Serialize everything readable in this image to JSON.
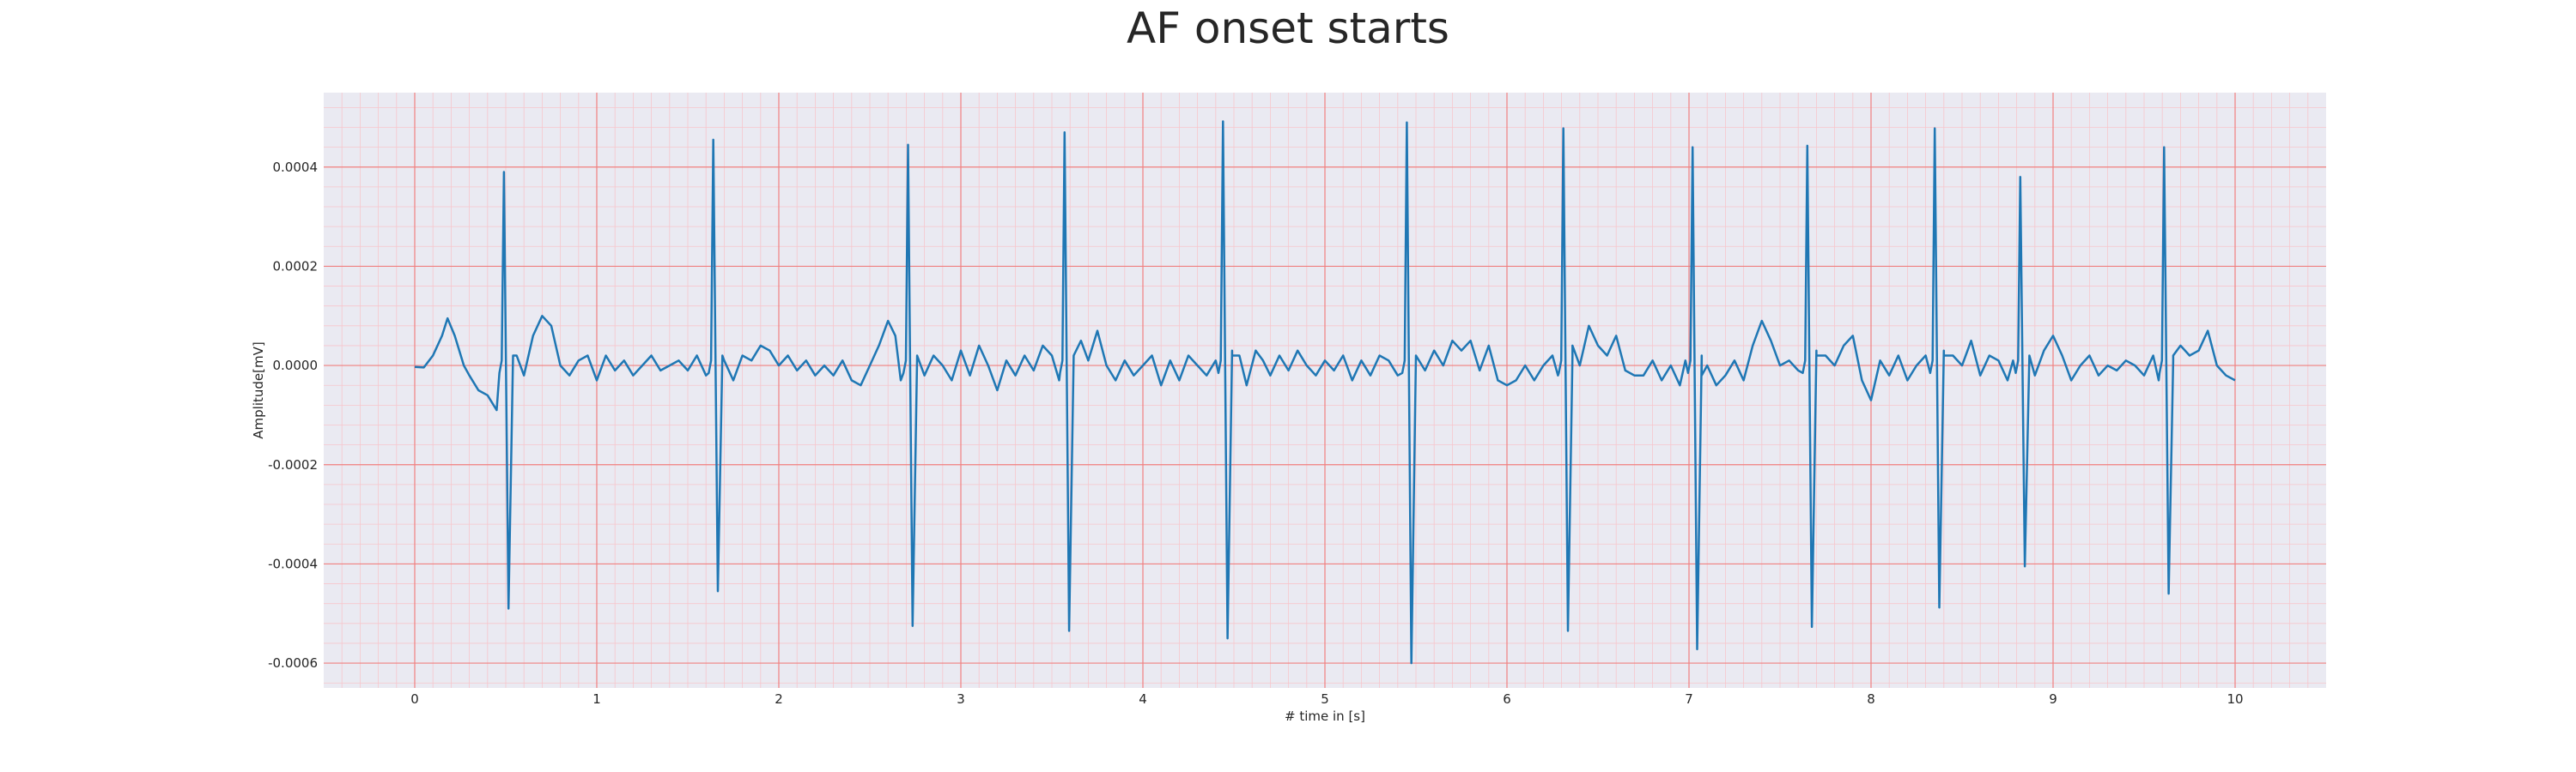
{
  "chart_data": {
    "type": "line",
    "title": "AF onset starts",
    "xlabel": "# time in [s]",
    "ylabel": "Amplitude[mV]",
    "xlim": [
      -0.5,
      10.5
    ],
    "ylim": [
      -0.00065,
      0.00055
    ],
    "x_ticks": [
      0,
      1,
      2,
      3,
      4,
      5,
      6,
      7,
      8,
      9,
      10
    ],
    "x_tick_labels": [
      "0",
      "1",
      "2",
      "3",
      "4",
      "5",
      "6",
      "7",
      "8",
      "9",
      "10"
    ],
    "y_ticks": [
      0.0004,
      0.0002,
      0.0,
      -0.0002,
      -0.0004,
      -0.0006
    ],
    "y_tick_labels": [
      "0.0004",
      "0.0002",
      "0.0000",
      "-0.0002",
      "-0.0004",
      "-0.0006"
    ],
    "grid": {
      "major": true,
      "minor": true,
      "major_color": "#f08080",
      "minor_color": "#f7c6cc"
    },
    "background": "#eaeaf2",
    "series": [
      {
        "color": "#1f77b4",
        "r_peaks": [
          {
            "t": 0.49,
            "max": 0.00039,
            "min": -0.00049
          },
          {
            "t": 1.64,
            "max": 0.000455,
            "min": -0.000455
          },
          {
            "t": 2.71,
            "max": 0.000445,
            "min": -0.000525
          },
          {
            "t": 3.57,
            "max": 0.00047,
            "min": -0.000535
          },
          {
            "t": 4.44,
            "max": 0.000492,
            "min": -0.00055
          },
          {
            "t": 5.45,
            "max": 0.00049,
            "min": -0.0006
          },
          {
            "t": 6.31,
            "max": 0.000478,
            "min": -0.000535
          },
          {
            "t": 7.02,
            "max": 0.00044,
            "min": -0.000572
          },
          {
            "t": 7.65,
            "max": 0.000443,
            "min": -0.000527
          },
          {
            "t": 8.35,
            "max": 0.000478,
            "min": -0.000488
          },
          {
            "t": 8.82,
            "max": 0.00038,
            "min": -0.000405
          },
          {
            "t": 9.61,
            "max": 0.00044,
            "min": -0.00046
          }
        ],
        "baseline_wave": [
          [
            0.0,
            -3e-06
          ],
          [
            0.05,
            -4e-06
          ],
          [
            0.1,
            2e-05
          ],
          [
            0.15,
            6e-05
          ],
          [
            0.18,
            9.5e-05
          ],
          [
            0.22,
            6e-05
          ],
          [
            0.27,
            0.0
          ],
          [
            0.3,
            -2e-05
          ],
          [
            0.35,
            -5e-05
          ],
          [
            0.4,
            -6e-05
          ],
          [
            0.45,
            -9e-05
          ],
          [
            0.56,
            2e-05
          ],
          [
            0.6,
            -2e-05
          ],
          [
            0.65,
            6e-05
          ],
          [
            0.7,
            0.0001
          ],
          [
            0.75,
            8e-05
          ],
          [
            0.8,
            0.0
          ],
          [
            0.85,
            -2e-05
          ],
          [
            0.9,
            1e-05
          ],
          [
            0.95,
            2e-05
          ],
          [
            1.0,
            -3e-05
          ],
          [
            1.05,
            2e-05
          ],
          [
            1.1,
            -1e-05
          ],
          [
            1.15,
            1e-05
          ],
          [
            1.2,
            -2e-05
          ],
          [
            1.25,
            0.0
          ],
          [
            1.3,
            2e-05
          ],
          [
            1.35,
            -1e-05
          ],
          [
            1.4,
            0.0
          ],
          [
            1.45,
            1e-05
          ],
          [
            1.5,
            -1e-05
          ],
          [
            1.55,
            2e-05
          ],
          [
            1.6,
            -2e-05
          ],
          [
            1.7,
            1e-05
          ],
          [
            1.75,
            -3e-05
          ],
          [
            1.8,
            2e-05
          ],
          [
            1.85,
            1e-05
          ],
          [
            1.9,
            4e-05
          ],
          [
            1.95,
            3e-05
          ],
          [
            2.0,
            0.0
          ],
          [
            2.05,
            2e-05
          ],
          [
            2.1,
            -1e-05
          ],
          [
            2.15,
            1e-05
          ],
          [
            2.2,
            -2e-05
          ],
          [
            2.25,
            0.0
          ],
          [
            2.3,
            -2e-05
          ],
          [
            2.35,
            1e-05
          ],
          [
            2.4,
            -3e-05
          ],
          [
            2.45,
            -4e-05
          ],
          [
            2.5,
            0.0
          ],
          [
            2.55,
            4e-05
          ],
          [
            2.6,
            9e-05
          ],
          [
            2.64,
            6e-05
          ],
          [
            2.67,
            -3e-05
          ],
          [
            2.76,
            2e-05
          ],
          [
            2.8,
            -2e-05
          ],
          [
            2.85,
            2e-05
          ],
          [
            2.9,
            0.0
          ],
          [
            2.95,
            -3e-05
          ],
          [
            3.0,
            3e-05
          ],
          [
            3.05,
            -2e-05
          ],
          [
            3.1,
            4e-05
          ],
          [
            3.15,
            0.0
          ],
          [
            3.2,
            -5e-05
          ],
          [
            3.25,
            1e-05
          ],
          [
            3.3,
            -2e-05
          ],
          [
            3.35,
            2e-05
          ],
          [
            3.4,
            -1e-05
          ],
          [
            3.45,
            4e-05
          ],
          [
            3.5,
            2e-05
          ],
          [
            3.54,
            -3e-05
          ],
          [
            3.62,
            2e-05
          ],
          [
            3.66,
            5e-05
          ],
          [
            3.7,
            1e-05
          ],
          [
            3.75,
            7e-05
          ],
          [
            3.8,
            0.0
          ],
          [
            3.85,
            -3e-05
          ],
          [
            3.9,
            1e-05
          ],
          [
            3.95,
            -2e-05
          ],
          [
            4.0,
            0.0
          ],
          [
            4.05,
            2e-05
          ],
          [
            4.1,
            -4e-05
          ],
          [
            4.15,
            1e-05
          ],
          [
            4.2,
            -3e-05
          ],
          [
            4.25,
            2e-05
          ],
          [
            4.3,
            0.0
          ],
          [
            4.35,
            -2e-05
          ],
          [
            4.4,
            1e-05
          ],
          [
            4.49,
            3e-05
          ],
          [
            4.53,
            2e-05
          ],
          [
            4.57,
            -4e-05
          ],
          [
            4.62,
            3e-05
          ],
          [
            4.66,
            1e-05
          ],
          [
            4.7,
            -2e-05
          ],
          [
            4.75,
            2e-05
          ],
          [
            4.8,
            -1e-05
          ],
          [
            4.85,
            3e-05
          ],
          [
            4.9,
            0.0
          ],
          [
            4.95,
            -2e-05
          ],
          [
            5.0,
            1e-05
          ],
          [
            5.05,
            -1e-05
          ],
          [
            5.1,
            2e-05
          ],
          [
            5.15,
            -3e-05
          ],
          [
            5.2,
            1e-05
          ],
          [
            5.25,
            -2e-05
          ],
          [
            5.3,
            2e-05
          ],
          [
            5.35,
            1e-05
          ],
          [
            5.4,
            -2e-05
          ],
          [
            5.5,
            2e-05
          ],
          [
            5.55,
            -1e-05
          ],
          [
            5.6,
            3e-05
          ],
          [
            5.65,
            0.0
          ],
          [
            5.7,
            5e-05
          ],
          [
            5.75,
            3e-05
          ],
          [
            5.8,
            5e-05
          ],
          [
            5.85,
            -1e-05
          ],
          [
            5.9,
            4e-05
          ],
          [
            5.95,
            -3e-05
          ],
          [
            6.0,
            -4e-05
          ],
          [
            6.05,
            -3e-05
          ],
          [
            6.1,
            0.0
          ],
          [
            6.15,
            -3e-05
          ],
          [
            6.2,
            0.0
          ],
          [
            6.25,
            2e-05
          ],
          [
            6.28,
            -2e-05
          ],
          [
            6.36,
            4e-05
          ],
          [
            6.4,
            0.0
          ],
          [
            6.45,
            8e-05
          ],
          [
            6.5,
            4e-05
          ],
          [
            6.55,
            2e-05
          ],
          [
            6.6,
            6e-05
          ],
          [
            6.65,
            -1e-05
          ],
          [
            6.7,
            -2e-05
          ],
          [
            6.75,
            -2e-05
          ],
          [
            6.8,
            1e-05
          ],
          [
            6.85,
            -3e-05
          ],
          [
            6.9,
            0.0
          ],
          [
            6.95,
            -4e-05
          ],
          [
            6.98,
            1e-05
          ],
          [
            7.07,
            -2e-05
          ],
          [
            7.1,
            0.0
          ],
          [
            7.15,
            -4e-05
          ],
          [
            7.2,
            -2e-05
          ],
          [
            7.25,
            1e-05
          ],
          [
            7.3,
            -3e-05
          ],
          [
            7.35,
            4e-05
          ],
          [
            7.4,
            9e-05
          ],
          [
            7.45,
            5e-05
          ],
          [
            7.5,
            0.0
          ],
          [
            7.55,
            1e-05
          ],
          [
            7.6,
            -1e-05
          ],
          [
            7.7,
            3e-05
          ],
          [
            7.75,
            2e-05
          ],
          [
            7.8,
            0.0
          ],
          [
            7.85,
            4e-05
          ],
          [
            7.9,
            6e-05
          ],
          [
            7.95,
            -3e-05
          ],
          [
            8.0,
            -7e-05
          ],
          [
            8.05,
            1e-05
          ],
          [
            8.1,
            -2e-05
          ],
          [
            8.15,
            2e-05
          ],
          [
            8.2,
            -3e-05
          ],
          [
            8.25,
            0.0
          ],
          [
            8.3,
            2e-05
          ],
          [
            8.4,
            3e-05
          ],
          [
            8.45,
            2e-05
          ],
          [
            8.5,
            0.0
          ],
          [
            8.55,
            5e-05
          ],
          [
            8.6,
            -2e-05
          ],
          [
            8.65,
            2e-05
          ],
          [
            8.7,
            1e-05
          ],
          [
            8.75,
            -3e-05
          ],
          [
            8.78,
            1e-05
          ],
          [
            8.87,
            2e-05
          ],
          [
            8.9,
            -2e-05
          ],
          [
            8.95,
            3e-05
          ],
          [
            9.0,
            6e-05
          ],
          [
            9.05,
            2e-05
          ],
          [
            9.1,
            -3e-05
          ],
          [
            9.15,
            0.0
          ],
          [
            9.2,
            2e-05
          ],
          [
            9.25,
            -2e-05
          ],
          [
            9.3,
            0.0
          ],
          [
            9.35,
            -1e-05
          ],
          [
            9.4,
            1e-05
          ],
          [
            9.45,
            0.0
          ],
          [
            9.5,
            -2e-05
          ],
          [
            9.55,
            2e-05
          ],
          [
            9.58,
            -3e-05
          ],
          [
            9.66,
            1e-05
          ],
          [
            9.7,
            4e-05
          ],
          [
            9.75,
            2e-05
          ],
          [
            9.8,
            3e-05
          ],
          [
            9.85,
            7e-05
          ],
          [
            9.9,
            0.0
          ],
          [
            9.95,
            -2e-05
          ],
          [
            10.0,
            -3e-05
          ]
        ]
      }
    ]
  }
}
